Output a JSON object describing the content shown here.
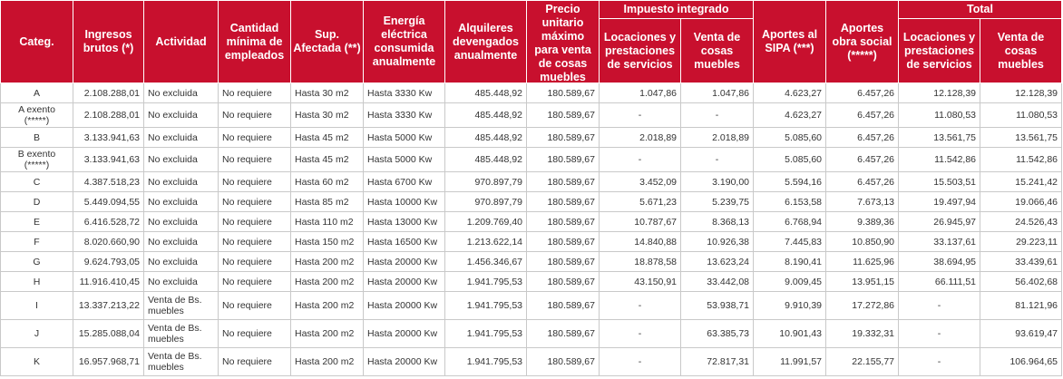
{
  "table": {
    "header": [
      "Categ.",
      "Ingresos brutos (*)",
      "Actividad",
      "Cantidad mínima de empleados",
      "Sup. Afectada (**)",
      "Energía eléctrica consumida anualmente",
      "Alquileres devengados anualmente",
      "Precio unitario máximo para venta de cosas muebles",
      "Impuesto integrado",
      "Aportes al SIPA (***)",
      "Aportes obra social (*****)",
      "Total"
    ],
    "subheader": [
      "Locaciones y prestaciones de servicios",
      "Venta de cosas muebles",
      "Locaciones y prestaciones de servicios",
      "Venta de cosas muebles"
    ],
    "rows": [
      [
        "A",
        "2.108.288,01",
        "No excluida",
        "No requiere",
        "Hasta 30 m2",
        "Hasta 3330 Kw",
        "485.448,92",
        "180.589,67",
        "1.047,86",
        "1.047,86",
        "4.623,27",
        "6.457,26",
        "12.128,39",
        "12.128,39"
      ],
      [
        "A exento (*****)",
        "2.108.288,01",
        "No excluida",
        "No requiere",
        "Hasta 30 m2",
        "Hasta 3330 Kw",
        "485.448,92",
        "180.589,67",
        "-",
        "-",
        "4.623,27",
        "6.457,26",
        "11.080,53",
        "11.080,53"
      ],
      [
        "B",
        "3.133.941,63",
        "No excluida",
        "No requiere",
        "Hasta 45 m2",
        "Hasta 5000 Kw",
        "485.448,92",
        "180.589,67",
        "2.018,89",
        "2.018,89",
        "5.085,60",
        "6.457,26",
        "13.561,75",
        "13.561,75"
      ],
      [
        "B exento (*****)",
        "3.133.941,63",
        "No excluida",
        "No requiere",
        "Hasta 45 m2",
        "Hasta 5000 Kw",
        "485.448,92",
        "180.589,67",
        "-",
        "-",
        "5.085,60",
        "6.457,26",
        "11.542,86",
        "11.542,86"
      ],
      [
        "C",
        "4.387.518,23",
        "No excluida",
        "No requiere",
        "Hasta 60 m2",
        "Hasta 6700 Kw",
        "970.897,79",
        "180.589,67",
        "3.452,09",
        "3.190,00",
        "5.594,16",
        "6.457,26",
        "15.503,51",
        "15.241,42"
      ],
      [
        "D",
        "5.449.094,55",
        "No excluida",
        "No requiere",
        "Hasta 85 m2",
        "Hasta 10000 Kw",
        "970.897,79",
        "180.589,67",
        "5.671,23",
        "5.239,75",
        "6.153,58",
        "7.673,13",
        "19.497,94",
        "19.066,46"
      ],
      [
        "E",
        "6.416.528,72",
        "No excluida",
        "No requiere",
        "Hasta 110 m2",
        "Hasta 13000 Kw",
        "1.209.769,40",
        "180.589,67",
        "10.787,67",
        "8.368,13",
        "6.768,94",
        "9.389,36",
        "26.945,97",
        "24.526,43"
      ],
      [
        "F",
        "8.020.660,90",
        "No excluida",
        "No requiere",
        "Hasta 150 m2",
        "Hasta 16500 Kw",
        "1.213.622,14",
        "180.589,67",
        "14.840,88",
        "10.926,38",
        "7.445,83",
        "10.850,90",
        "33.137,61",
        "29.223,11"
      ],
      [
        "G",
        "9.624.793,05",
        "No excluida",
        "No requiere",
        "Hasta 200 m2",
        "Hasta 20000 Kw",
        "1.456.346,67",
        "180.589,67",
        "18.878,58",
        "13.623,24",
        "8.190,41",
        "11.625,96",
        "38.694,95",
        "33.439,61"
      ],
      [
        "H",
        "11.916.410,45",
        "No excluida",
        "No requiere",
        "Hasta 200 m2",
        "Hasta 20000 Kw",
        "1.941.795,53",
        "180.589,67",
        "43.150,91",
        "33.442,08",
        "9.009,45",
        "13.951,15",
        "66.111,51",
        "56.402,68"
      ],
      [
        "I",
        "13.337.213,22",
        "Venta de Bs. muebles",
        "No requiere",
        "Hasta 200 m2",
        "Hasta 20000 Kw",
        "1.941.795,53",
        "180.589,67",
        "-",
        "53.938,71",
        "9.910,39",
        "17.272,86",
        "-",
        "81.121,96"
      ],
      [
        "J",
        "15.285.088,04",
        "Venta de Bs. muebles",
        "No requiere",
        "Hasta 200 m2",
        "Hasta 20000 Kw",
        "1.941.795,53",
        "180.589,67",
        "-",
        "63.385,73",
        "10.901,43",
        "19.332,31",
        "-",
        "93.619,47"
      ],
      [
        "K",
        "16.957.968,71",
        "Venta de Bs. muebles",
        "No requiere",
        "Hasta 200 m2",
        "Hasta 20000 Kw",
        "1.941.795,53",
        "180.589,67",
        "-",
        "72.817,31",
        "11.991,57",
        "22.155,77",
        "-",
        "106.964,65"
      ]
    ]
  }
}
